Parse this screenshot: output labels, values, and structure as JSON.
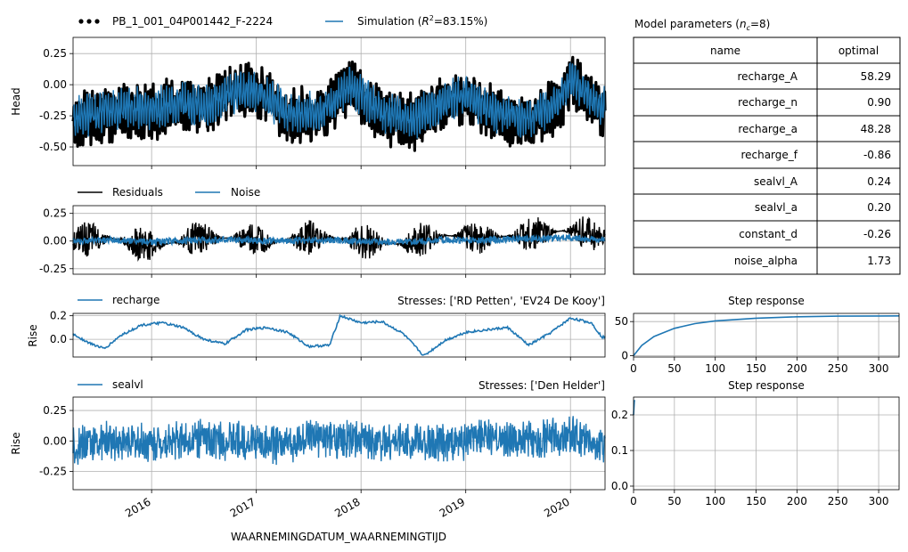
{
  "colors": {
    "simulation": "#1f77b4",
    "observed": "#000000",
    "residuals": "#000000",
    "noise": "#1f77b4",
    "grid": "#b0b0b0"
  },
  "xaxis": {
    "label": "WAARNEMINGDATUM_WAARNEMINGTIJD",
    "ticks": [
      "2016",
      "2017",
      "2018",
      "2019",
      "2020"
    ]
  },
  "chart_data": [
    {
      "type": "line",
      "panel": "head",
      "ylabel": "Head",
      "ylim": [
        -0.65,
        0.38
      ],
      "yticks": [
        "0.25",
        "0.00",
        "-0.25",
        "-0.50"
      ],
      "legend": {
        "observed": "PB_1_001_04P001442_F-2224",
        "simulation_prefix": "Simulation (",
        "simulation_r": "R",
        "simulation_sup": "2",
        "simulation_suffix": "=83.15%)"
      },
      "series": [
        {
          "name": "PB_1_001_04P001442_F-2224",
          "style": "dots",
          "x": [
            2015.2,
            2015.5,
            2015.8,
            2016.0,
            2016.3,
            2016.5,
            2016.8,
            2017.0,
            2017.3,
            2017.6,
            2017.9,
            2018.0,
            2018.2,
            2018.5,
            2018.8,
            2019.0,
            2019.3,
            2019.6,
            2019.9,
            2020.0,
            2020.3
          ],
          "values": [
            -0.3,
            -0.25,
            -0.2,
            -0.22,
            -0.15,
            -0.2,
            -0.05,
            -0.05,
            -0.25,
            -0.25,
            0.0,
            -0.1,
            -0.25,
            -0.3,
            -0.15,
            -0.1,
            -0.25,
            -0.3,
            -0.15,
            0.05,
            -0.2
          ]
        },
        {
          "name": "Simulation",
          "x": [
            2015.2,
            2015.5,
            2015.8,
            2016.0,
            2016.3,
            2016.5,
            2016.8,
            2017.0,
            2017.3,
            2017.6,
            2017.9,
            2018.0,
            2018.2,
            2018.5,
            2018.8,
            2019.0,
            2019.3,
            2019.6,
            2019.9,
            2020.0,
            2020.3
          ],
          "values": [
            -0.28,
            -0.22,
            -0.18,
            -0.2,
            -0.14,
            -0.18,
            -0.06,
            -0.04,
            -0.22,
            -0.23,
            0.0,
            -0.08,
            -0.22,
            -0.27,
            -0.14,
            -0.09,
            -0.23,
            -0.27,
            -0.13,
            0.04,
            -0.18
          ]
        }
      ]
    },
    {
      "type": "line",
      "panel": "residuals",
      "ylim": [
        -0.3,
        0.32
      ],
      "yticks": [
        "0.25",
        "0.00",
        "-0.25"
      ],
      "legend": [
        "Residuals",
        "Noise"
      ],
      "series": [
        {
          "name": "Residuals",
          "x": [
            2015.2,
            2015.6,
            2016.0,
            2016.4,
            2016.8,
            2017.2,
            2017.6,
            2018.0,
            2018.4,
            2018.8,
            2019.2,
            2019.6,
            2020.0,
            2020.3
          ],
          "values": [
            0.0,
            0.03,
            -0.05,
            0.02,
            0.03,
            0.0,
            0.04,
            0.0,
            -0.03,
            0.05,
            0.03,
            0.06,
            0.1,
            0.04
          ]
        },
        {
          "name": "Noise",
          "x": [
            2015.2,
            2015.6,
            2016.0,
            2016.4,
            2016.8,
            2017.2,
            2017.6,
            2018.0,
            2018.4,
            2018.8,
            2019.2,
            2019.6,
            2020.0,
            2020.3
          ],
          "values": [
            0.0,
            0.01,
            -0.01,
            0.01,
            0.01,
            0.0,
            0.01,
            0.0,
            -0.01,
            0.01,
            0.01,
            0.02,
            0.03,
            0.01
          ]
        }
      ]
    },
    {
      "type": "line",
      "panel": "recharge",
      "ylabel": "Rise",
      "title": "Stresses: ['RD Petten', 'EV24 De Kooy']",
      "ylim": [
        -0.15,
        0.22
      ],
      "yticks": [
        "0.2",
        "0.0"
      ],
      "legend": [
        "recharge"
      ],
      "series": [
        {
          "name": "recharge",
          "x": [
            2015.2,
            2015.4,
            2015.55,
            2015.7,
            2015.9,
            2016.1,
            2016.3,
            2016.5,
            2016.7,
            2016.9,
            2017.1,
            2017.3,
            2017.5,
            2017.7,
            2017.8,
            2018.0,
            2018.2,
            2018.4,
            2018.6,
            2018.8,
            2019.0,
            2019.2,
            2019.4,
            2019.6,
            2019.8,
            2020.0,
            2020.2,
            2020.3
          ],
          "values": [
            0.07,
            -0.03,
            -0.08,
            0.03,
            0.12,
            0.14,
            0.1,
            0.0,
            -0.04,
            0.08,
            0.1,
            0.06,
            -0.06,
            -0.05,
            0.2,
            0.14,
            0.15,
            0.05,
            -0.14,
            -0.01,
            0.06,
            0.08,
            0.1,
            -0.05,
            0.05,
            0.18,
            0.14,
            0.02
          ]
        }
      ]
    },
    {
      "type": "line",
      "panel": "step_recharge",
      "title": "Step response",
      "ylim": [
        -2,
        62
      ],
      "xlim": [
        0,
        325
      ],
      "xticks": [
        "0",
        "50",
        "100",
        "150",
        "200",
        "250",
        "300"
      ],
      "yticks": [
        "50",
        "0"
      ],
      "series": [
        {
          "name": "recharge",
          "x": [
            0,
            10,
            25,
            50,
            75,
            100,
            150,
            200,
            250,
            300,
            325
          ],
          "values": [
            0,
            15,
            28,
            40,
            47,
            51,
            55,
            57,
            58,
            58.2,
            58.3
          ]
        }
      ]
    },
    {
      "type": "line",
      "panel": "sealvl",
      "ylabel": "Rise",
      "title": "Stresses: ['Den Helder']",
      "ylim": [
        -0.4,
        0.36
      ],
      "yticks": [
        "0.25",
        "0.00",
        "-0.25"
      ],
      "legend": [
        "sealvl"
      ],
      "series": [
        {
          "name": "sealvl",
          "x": [
            2015.2,
            2015.6,
            2016.0,
            2016.4,
            2016.8,
            2017.2,
            2017.6,
            2018.0,
            2018.4,
            2018.8,
            2019.2,
            2019.6,
            2020.0,
            2020.3
          ],
          "values": [
            -0.05,
            0.0,
            -0.02,
            0.02,
            0.0,
            -0.03,
            0.02,
            0.0,
            0.0,
            -0.02,
            0.03,
            0.0,
            0.05,
            -0.05
          ]
        }
      ]
    },
    {
      "type": "line",
      "panel": "step_sealvl",
      "title": "Step response",
      "ylim": [
        -0.01,
        0.25
      ],
      "xlim": [
        0,
        325
      ],
      "xticks": [
        "0",
        "50",
        "100",
        "150",
        "200",
        "250",
        "300"
      ],
      "yticks": [
        "0.2",
        "0.1",
        "0.0"
      ],
      "series": [
        {
          "name": "sealvl",
          "x": [
            0,
            1,
            2
          ],
          "values": [
            0.2,
            0.24,
            0.24
          ]
        }
      ]
    }
  ],
  "params_table": {
    "title_prefix": "Model parameters (",
    "title_n": "n",
    "title_sub": "c",
    "title_suffix": "=8)",
    "headers": [
      "name",
      "optimal"
    ],
    "rows": [
      [
        "recharge_A",
        "58.29"
      ],
      [
        "recharge_n",
        "0.90"
      ],
      [
        "recharge_a",
        "48.28"
      ],
      [
        "recharge_f",
        "-0.86"
      ],
      [
        "sealvl_A",
        "0.24"
      ],
      [
        "sealvl_a",
        "0.20"
      ],
      [
        "constant_d",
        "-0.26"
      ],
      [
        "noise_alpha",
        "1.73"
      ]
    ]
  }
}
